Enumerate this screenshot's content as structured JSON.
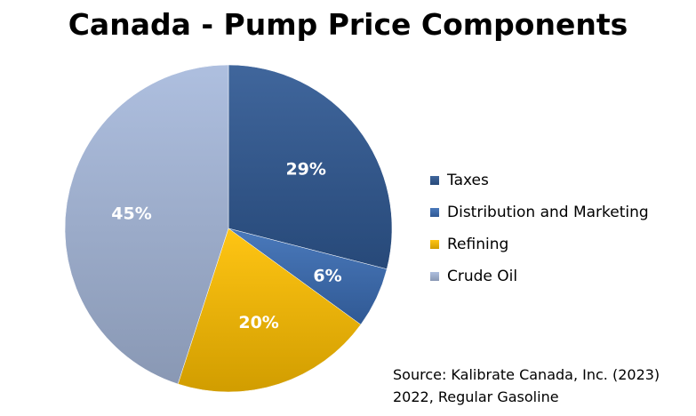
{
  "chart_data": {
    "type": "pie",
    "title": "Canada - Pump Price Components",
    "categories": [
      "Taxes",
      "Distribution and Marketing",
      "Refining",
      "Crude Oil"
    ],
    "values": [
      29,
      6,
      20,
      45
    ],
    "labels": [
      "29%",
      "6%",
      "20%",
      "45%"
    ],
    "colors": [
      "#2f5993",
      "#3a6db5",
      "#ffc000",
      "#a7b9dc"
    ],
    "legend_position": "right",
    "start_angle": "12 o'clock, clockwise"
  },
  "source": {
    "line1": "Source: Kalibrate Canada, Inc. (2023)",
    "line2": "2022, Regular Gasoline"
  }
}
